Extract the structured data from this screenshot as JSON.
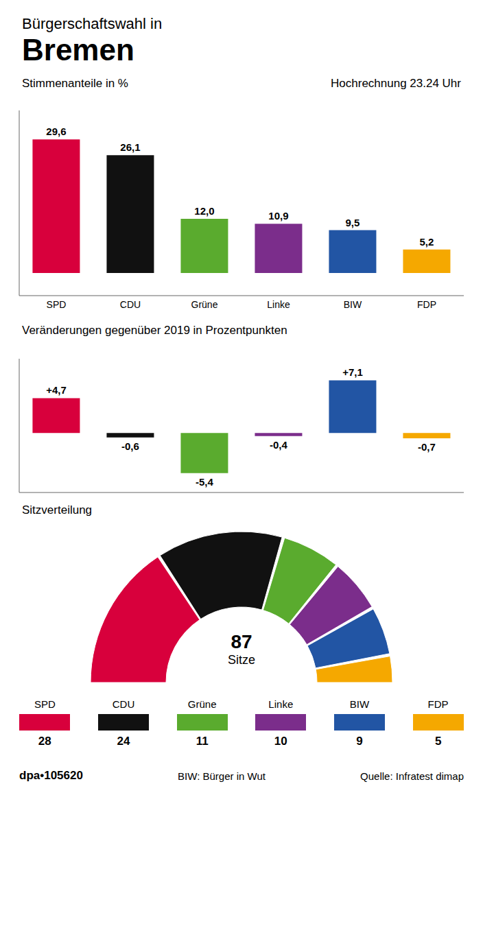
{
  "chart_data": [
    {
      "type": "bar",
      "title": "Stimmenanteile in %",
      "subtitle": "Hochrechnung 23.24 Uhr",
      "annotations": [
        "Bürgerschaftswahl in",
        "Bremen"
      ],
      "categories": [
        "SPD",
        "CDU",
        "Grüne",
        "Linke",
        "BIW",
        "FDP"
      ],
      "values": [
        29.6,
        26.1,
        12.0,
        10.9,
        9.5,
        5.2
      ],
      "value_labels": [
        "29,6",
        "26,1",
        "12,0",
        "10,9",
        "9,5",
        "5,2"
      ],
      "colors": [
        "#D8003C",
        "#111111",
        "#5AAB2E",
        "#7B2D8B",
        "#2255A4",
        "#F5A800"
      ],
      "ylim": [
        -5,
        36
      ],
      "data_labels": true,
      "tick_labels": "x",
      "grid": false
    },
    {
      "type": "bar",
      "title": "Veränderungen gegenüber 2019 in Prozentpunkten",
      "categories": [
        "SPD",
        "CDU",
        "Grüne",
        "Linke",
        "BIW",
        "FDP"
      ],
      "values": [
        4.7,
        -0.6,
        -5.4,
        -0.4,
        7.1,
        -0.7
      ],
      "value_labels": [
        "+4,7",
        "-0,6",
        "-5,4",
        "-0,4",
        "+7,1",
        "-0,7"
      ],
      "colors": [
        "#D8003C",
        "#111111",
        "#5AAB2E",
        "#7B2D8B",
        "#2255A4",
        "#F5A800"
      ],
      "ylim": [
        -8,
        10
      ],
      "data_labels": true,
      "tick_labels": false,
      "grid": false
    },
    {
      "type": "pie",
      "title": "Sitzverteilung",
      "annotations": [
        "87",
        "Sitze",
        "dpa•105620",
        "BIW: Bürger in Wut",
        "Quelle: Infratest dimap"
      ],
      "categories": [
        "SPD",
        "CDU",
        "Grüne",
        "Linke",
        "BIW",
        "FDP"
      ],
      "values": [
        28,
        24,
        11,
        10,
        9,
        5
      ],
      "colors": [
        "#D8003C",
        "#111111",
        "#5AAB2E",
        "#7B2D8B",
        "#2255A4",
        "#F5A800"
      ],
      "data_labels": true,
      "legend": "bottom"
    }
  ]
}
